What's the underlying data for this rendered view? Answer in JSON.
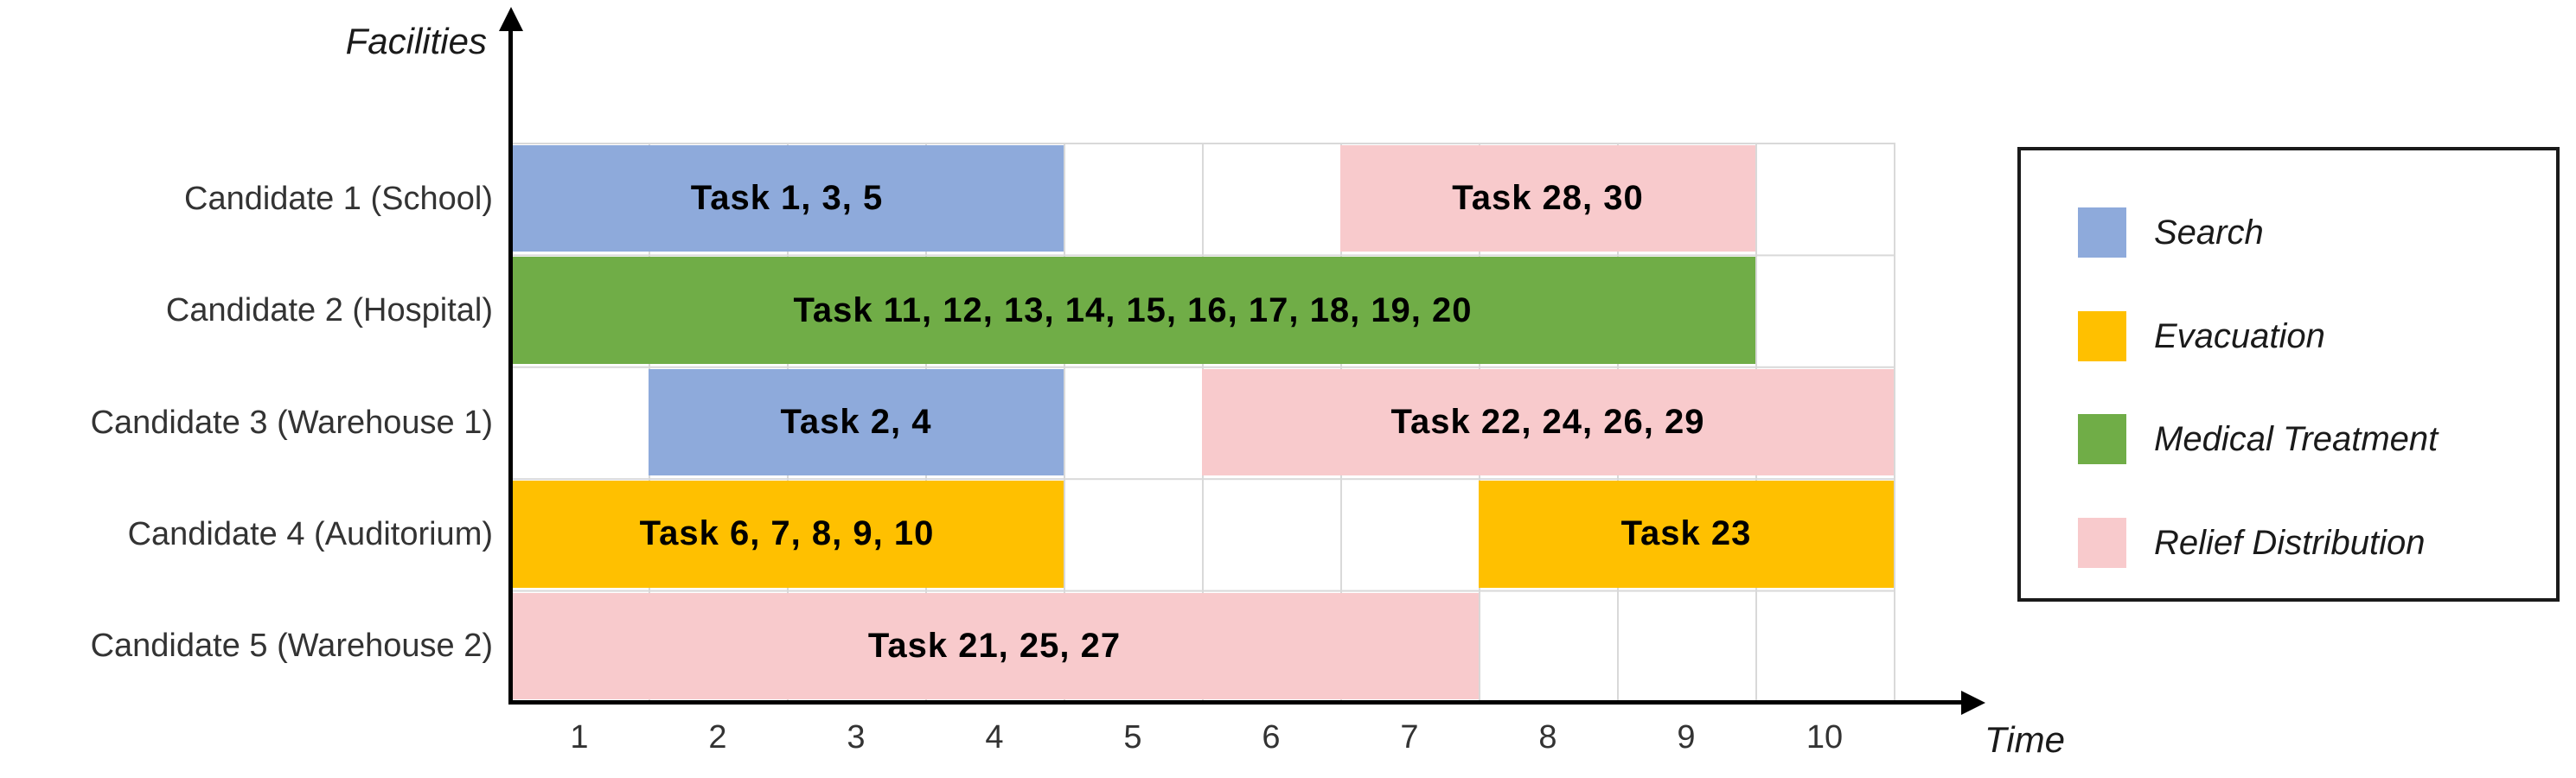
{
  "axis": {
    "y_title": "Facilities",
    "x_title": "Time"
  },
  "chart_data": {
    "type": "bar",
    "subtype": "gantt",
    "title": "",
    "ylabel": "Facilities",
    "xlabel": "Time",
    "x_ticks": [
      "1",
      "2",
      "3",
      "4",
      "5",
      "6",
      "7",
      "8",
      "9",
      "10"
    ],
    "x_range": [
      0.5,
      10.5
    ],
    "grid": true,
    "legend_position": "right-outside",
    "rows": [
      "Candidate 1 (School)",
      "Candidate 2 (Hospital)",
      "Candidate 3 (Warehouse 1)",
      "Candidate 4 (Auditorium)",
      "Candidate 5 (Warehouse 2)"
    ],
    "legend": [
      {
        "label": "Search",
        "color": "#8EAADB"
      },
      {
        "label": "Evacuation",
        "color": "#FFC000"
      },
      {
        "label": "Medical Treatment",
        "color": "#70AD47"
      },
      {
        "label": "Relief Distribution",
        "color": "#F8CACC"
      }
    ],
    "colors": {
      "gridline": "#D9D9D9",
      "axis": "#000000",
      "bar_label": "#000000",
      "tick_label": "#333333"
    },
    "bars": [
      {
        "facility": "Candidate 1 (School)",
        "category": "Search",
        "label": "Task 1, 3, 5",
        "tasks": [
          1,
          3,
          5
        ],
        "start": 0.5,
        "end": 4.5
      },
      {
        "facility": "Candidate 1 (School)",
        "category": "Relief Distribution",
        "label": "Task 28, 30",
        "tasks": [
          28,
          30
        ],
        "start": 6.5,
        "end": 9.5
      },
      {
        "facility": "Candidate 2 (Hospital)",
        "category": "Medical Treatment",
        "label": "Task 11, 12, 13, 14, 15, 16, 17, 18, 19, 20",
        "tasks": [
          11,
          12,
          13,
          14,
          15,
          16,
          17,
          18,
          19,
          20
        ],
        "start": 0.5,
        "end": 9.5
      },
      {
        "facility": "Candidate 3 (Warehouse 1)",
        "category": "Search",
        "label": "Task 2, 4",
        "tasks": [
          2,
          4
        ],
        "start": 1.5,
        "end": 4.5
      },
      {
        "facility": "Candidate 3 (Warehouse 1)",
        "category": "Relief Distribution",
        "label": "Task 22, 24, 26, 29",
        "tasks": [
          22,
          24,
          26,
          29
        ],
        "start": 5.5,
        "end": 10.5
      },
      {
        "facility": "Candidate 4 (Auditorium)",
        "category": "Evacuation",
        "label": "Task 6, 7, 8, 9, 10",
        "tasks": [
          6,
          7,
          8,
          9,
          10
        ],
        "start": 0.5,
        "end": 4.5
      },
      {
        "facility": "Candidate 4 (Auditorium)",
        "category": "Evacuation",
        "label": "Task 23",
        "tasks": [
          23
        ],
        "start": 7.5,
        "end": 10.5
      },
      {
        "facility": "Candidate 5 (Warehouse 2)",
        "category": "Relief Distribution",
        "label": "Task 21, 25, 27",
        "tasks": [
          21,
          25,
          27
        ],
        "start": 0.5,
        "end": 7.5
      }
    ]
  }
}
